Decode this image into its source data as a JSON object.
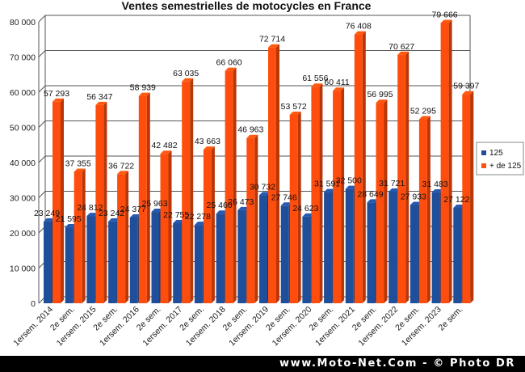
{
  "chart_data": {
    "type": "bar",
    "title": "Ventes semestrielles de motocycles en France",
    "xlabel": "",
    "ylabel": "",
    "ylim": [
      0,
      80000
    ],
    "yticks": [
      "0",
      "10 000",
      "20 000",
      "30 000",
      "40 000",
      "50 000",
      "60 000",
      "70 000",
      "80 000"
    ],
    "grid": true,
    "legend_position": "right",
    "categories": [
      "1ersem. 2014",
      "2e sem.",
      "1ersem. 2015",
      "2e sem.",
      "1ersem. 2016",
      "2e sem.",
      "1ersem. 2017",
      "2e sem.",
      "1ersem. 2018",
      "2e sem.",
      "1ersem. 2019",
      "2e sem.",
      "1ersem. 2020",
      "2e sem.",
      "1ersem. 2021",
      "2e sem.",
      "1ersem. 2022",
      "2e sem.",
      "1ersem. 2023",
      "2e sem."
    ],
    "series": [
      {
        "name": "125",
        "color": "#1f4e9a",
        "values": [
          23249,
          21595,
          24812,
          23242,
          24377,
          25963,
          22755,
          22278,
          25460,
          26473,
          30732,
          27746,
          24623,
          31591,
          32500,
          28649,
          31721,
          27933,
          31483,
          27122
        ],
        "labels": [
          "23 249",
          "21 595",
          "24 812",
          "23 242",
          "24 377",
          "25 963",
          "22 755",
          "22 278",
          "25 460",
          "26 473",
          "30 732",
          "27 746",
          "24 623",
          "31 591",
          "32 500",
          "28 649",
          "31 721",
          "27 933",
          "31 483",
          "27 122"
        ]
      },
      {
        "name": "+ de 125",
        "color": "#ff4d0d",
        "values": [
          57293,
          37355,
          56347,
          36722,
          58939,
          42482,
          63035,
          43663,
          66060,
          46963,
          72714,
          53572,
          61556,
          60411,
          76408,
          56995,
          70627,
          52295,
          79666,
          59397
        ],
        "labels": [
          "57 293",
          "37 355",
          "56 347",
          "36 722",
          "58 939",
          "42 482",
          "63 035",
          "43 663",
          "66 060",
          "46 963",
          "72 714",
          "53 572",
          "61 556",
          "60 411",
          "76 408",
          "56 995",
          "70 627",
          "52 295",
          "79 666",
          "59 397"
        ]
      }
    ]
  },
  "footer": {
    "text": "www.Moto-Net.Com - © Photo DR"
  }
}
